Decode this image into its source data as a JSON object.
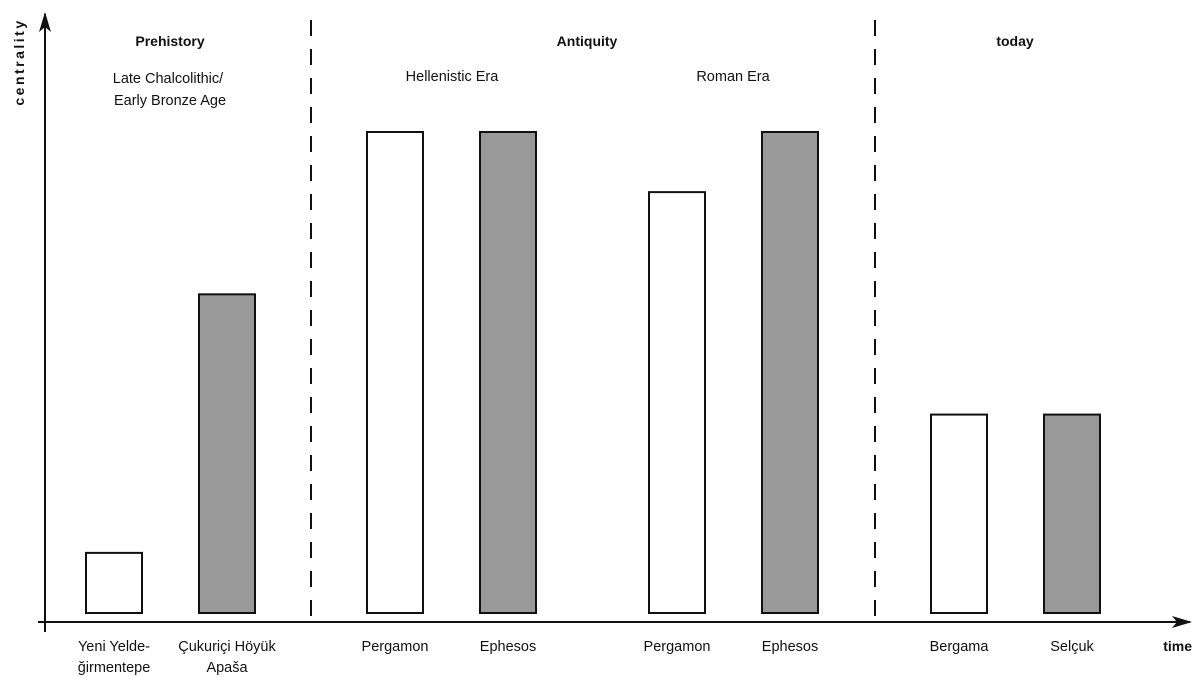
{
  "chart_data": {
    "type": "bar",
    "title": "",
    "xlabel": "time",
    "ylabel": "centrality",
    "ylim": [
      0,
      8
    ],
    "grid": false,
    "legend": "none",
    "colors": {
      "white": "#ffffff",
      "grey": "#999999",
      "stroke": "#111111"
    },
    "periods": [
      {
        "title": "Prehistory",
        "subtitles": [
          {
            "lines": [
              "Late Chalcolithic/",
              "Early Bronze Age"
            ]
          }
        ]
      },
      {
        "title": "Antiquity",
        "subtitles": [
          {
            "lines": [
              "Hellenistic Era"
            ]
          },
          {
            "lines": [
              "Roman Era"
            ]
          }
        ]
      },
      {
        "title": "today",
        "subtitles": []
      }
    ],
    "categories": [
      {
        "lines": [
          "Yeni Yelde-",
          "ğirmentepe"
        ],
        "value": 1,
        "fill": "white"
      },
      {
        "lines": [
          "Çukuriçi Höyük",
          "Apaša"
        ],
        "value": 5.3,
        "fill": "grey"
      },
      {
        "lines": [
          "Pergamon"
        ],
        "value": 8,
        "fill": "white"
      },
      {
        "lines": [
          "Ephesos"
        ],
        "value": 8,
        "fill": "grey"
      },
      {
        "lines": [
          "Pergamon"
        ],
        "value": 7,
        "fill": "white"
      },
      {
        "lines": [
          "Ephesos"
        ],
        "value": 8,
        "fill": "grey"
      },
      {
        "lines": [
          "Bergama"
        ],
        "value": 3.3,
        "fill": "white"
      },
      {
        "lines": [
          "Selçuk"
        ],
        "value": 3.3,
        "fill": "grey"
      }
    ]
  }
}
